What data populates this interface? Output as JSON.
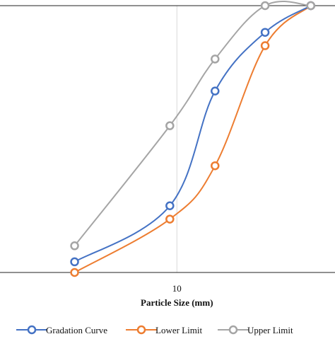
{
  "chart_data": {
    "type": "line",
    "title": "",
    "xlabel": "Particle Size (mm)",
    "ylabel": "",
    "x_scale": "log",
    "xlim": [
      2.76,
      31.6
    ],
    "ylim": [
      0,
      100
    ],
    "x_tick_labels": [
      "10"
    ],
    "grid": {
      "x": true,
      "y": false
    },
    "legend_position": "bottom",
    "series": [
      {
        "name": "Gradation Curve",
        "color": "#4472C4",
        "points": [
          [
            4.75,
            4
          ],
          [
            9.5,
            25
          ],
          [
            13.2,
            68
          ],
          [
            19,
            90
          ],
          [
            26.5,
            100
          ]
        ]
      },
      {
        "name": "Lower Limit",
        "color": "#ED7D31",
        "points": [
          [
            4.75,
            0
          ],
          [
            9.5,
            20
          ],
          [
            13.2,
            40
          ],
          [
            19,
            85
          ],
          [
            26.5,
            100
          ]
        ]
      },
      {
        "name": "Upper Limit",
        "color": "#A5A5A5",
        "points": [
          [
            4.75,
            10
          ],
          [
            9.5,
            55
          ],
          [
            13.2,
            80
          ],
          [
            19,
            100
          ],
          [
            26.5,
            100
          ]
        ]
      }
    ]
  }
}
